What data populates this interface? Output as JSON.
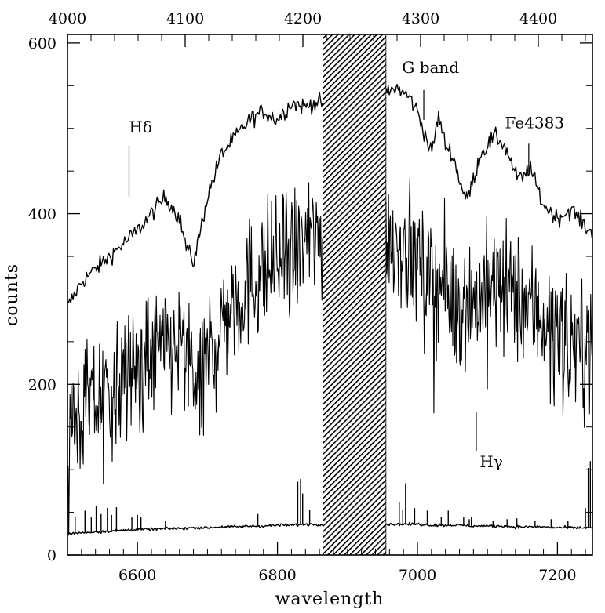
{
  "chart_data": {
    "type": "line",
    "title": "",
    "xlabel": "wavelength",
    "ylabel": "counts",
    "xlim": [
      6500,
      7250
    ],
    "ylim": [
      0,
      610
    ],
    "top_xlim": [
      4000,
      4446
    ],
    "x_ticks": [
      6600,
      6800,
      7000,
      7200
    ],
    "top_ticks": [
      4000,
      4100,
      4200,
      4300,
      4400
    ],
    "y_ticks": [
      0,
      200,
      400,
      600
    ],
    "masked_region": [
      6865,
      6955
    ],
    "grid": false,
    "legend": "none",
    "annotations": [
      {
        "text": "Hδ",
        "x": 6588,
        "y": 495,
        "line_from": [
          6588,
          480
        ],
        "line_to": [
          6588,
          420
        ]
      },
      {
        "text": "G band",
        "x": 6978,
        "y": 565,
        "line_from": [
          7009,
          545
        ],
        "line_to": [
          7009,
          510
        ]
      },
      {
        "text": "Fe4383",
        "x": 7125,
        "y": 500,
        "line_from": [
          7159,
          482
        ],
        "line_to": [
          7159,
          448
        ]
      },
      {
        "text": "Hγ",
        "x": 7089,
        "y": 103,
        "line_from": [
          7084,
          168
        ],
        "line_to": [
          7084,
          122
        ]
      }
    ],
    "series": [
      {
        "style": "smooth",
        "x": [
          6500,
          6520,
          6540,
          6560,
          6580,
          6600,
          6620,
          6640,
          6660,
          6670,
          6680,
          6690,
          6700,
          6720,
          6740,
          6760,
          6780,
          6800,
          6820,
          6840,
          6850,
          6860,
          6955,
          6970,
          6990,
          7000,
          7010,
          7020,
          7030,
          7040,
          7050,
          7060,
          7070,
          7080,
          7090,
          7100,
          7110,
          7120,
          7130,
          7140,
          7150,
          7160,
          7180,
          7200,
          7220,
          7240,
          7250
        ],
        "y": [
          290,
          320,
          335,
          350,
          365,
          380,
          400,
          420,
          395,
          360,
          343,
          380,
          420,
          470,
          490,
          510,
          520,
          510,
          530,
          525,
          530,
          530,
          540,
          548,
          535,
          520,
          495,
          470,
          515,
          480,
          470,
          440,
          415,
          440,
          470,
          480,
          490,
          485,
          470,
          445,
          440,
          455,
          410,
          395,
          405,
          385,
          375
        ]
      },
      {
        "style": "noisy",
        "x": [
          6500,
          6520,
          6540,
          6560,
          6580,
          6600,
          6620,
          6640,
          6660,
          6680,
          6690,
          6700,
          6720,
          6740,
          6760,
          6780,
          6800,
          6820,
          6840,
          6860,
          6955,
          6970,
          6990,
          7010,
          7030,
          7050,
          7070,
          7080,
          7090,
          7100,
          7120,
          7140,
          7160,
          7180,
          7200,
          7220,
          7240,
          7250
        ],
        "y": [
          145,
          165,
          180,
          190,
          205,
          220,
          235,
          240,
          245,
          220,
          170,
          240,
          270,
          300,
          320,
          335,
          345,
          350,
          365,
          375,
          375,
          370,
          355,
          330,
          320,
          300,
          300,
          295,
          305,
          310,
          315,
          305,
          290,
          280,
          265,
          255,
          245,
          240
        ]
      },
      {
        "style": "sky",
        "x": [
          6500,
          6520,
          6540,
          6560,
          6580,
          6600,
          6620,
          6640,
          6660,
          6680,
          6700,
          6720,
          6740,
          6760,
          6780,
          6800,
          6820,
          6840,
          6860,
          6955,
          6980,
          7000,
          7020,
          7040,
          7060,
          7080,
          7100,
          7120,
          7140,
          7160,
          7180,
          7200,
          7220,
          7240,
          7250
        ],
        "y": [
          25,
          26,
          27,
          28,
          29,
          30,
          30,
          31,
          31,
          32,
          32,
          33,
          33,
          34,
          34,
          35,
          35,
          36,
          36,
          36,
          36,
          36,
          35,
          35,
          35,
          34,
          34,
          34,
          33,
          33,
          33,
          32,
          32,
          32,
          32
        ],
        "spikes": [
          {
            "x": 6511,
            "y": 45
          },
          {
            "x": 6525,
            "y": 52
          },
          {
            "x": 6534,
            "y": 44
          },
          {
            "x": 6541,
            "y": 57
          },
          {
            "x": 6548,
            "y": 48
          },
          {
            "x": 6557,
            "y": 55
          },
          {
            "x": 6563,
            "y": 47
          },
          {
            "x": 6570,
            "y": 56
          },
          {
            "x": 6592,
            "y": 44
          },
          {
            "x": 6600,
            "y": 47
          },
          {
            "x": 6605,
            "y": 45
          },
          {
            "x": 6640,
            "y": 40
          },
          {
            "x": 6772,
            "y": 48
          },
          {
            "x": 6829,
            "y": 86
          },
          {
            "x": 6833,
            "y": 89
          },
          {
            "x": 6836,
            "y": 72
          },
          {
            "x": 6846,
            "y": 53
          },
          {
            "x": 6974,
            "y": 62
          },
          {
            "x": 6979,
            "y": 53
          },
          {
            "x": 6983,
            "y": 84
          },
          {
            "x": 6996,
            "y": 55
          },
          {
            "x": 7014,
            "y": 52
          },
          {
            "x": 7034,
            "y": 45
          },
          {
            "x": 7044,
            "y": 52
          },
          {
            "x": 7066,
            "y": 44
          },
          {
            "x": 7074,
            "y": 42
          },
          {
            "x": 7077,
            "y": 45
          },
          {
            "x": 7108,
            "y": 40
          },
          {
            "x": 7128,
            "y": 42
          },
          {
            "x": 7142,
            "y": 43
          },
          {
            "x": 7168,
            "y": 40
          },
          {
            "x": 7191,
            "y": 42
          },
          {
            "x": 7215,
            "y": 40
          },
          {
            "x": 7240,
            "y": 55
          },
          {
            "x": 7244,
            "y": 102
          },
          {
            "x": 7247,
            "y": 110
          },
          {
            "x": 7250,
            "y": 88
          }
        ]
      }
    ]
  }
}
